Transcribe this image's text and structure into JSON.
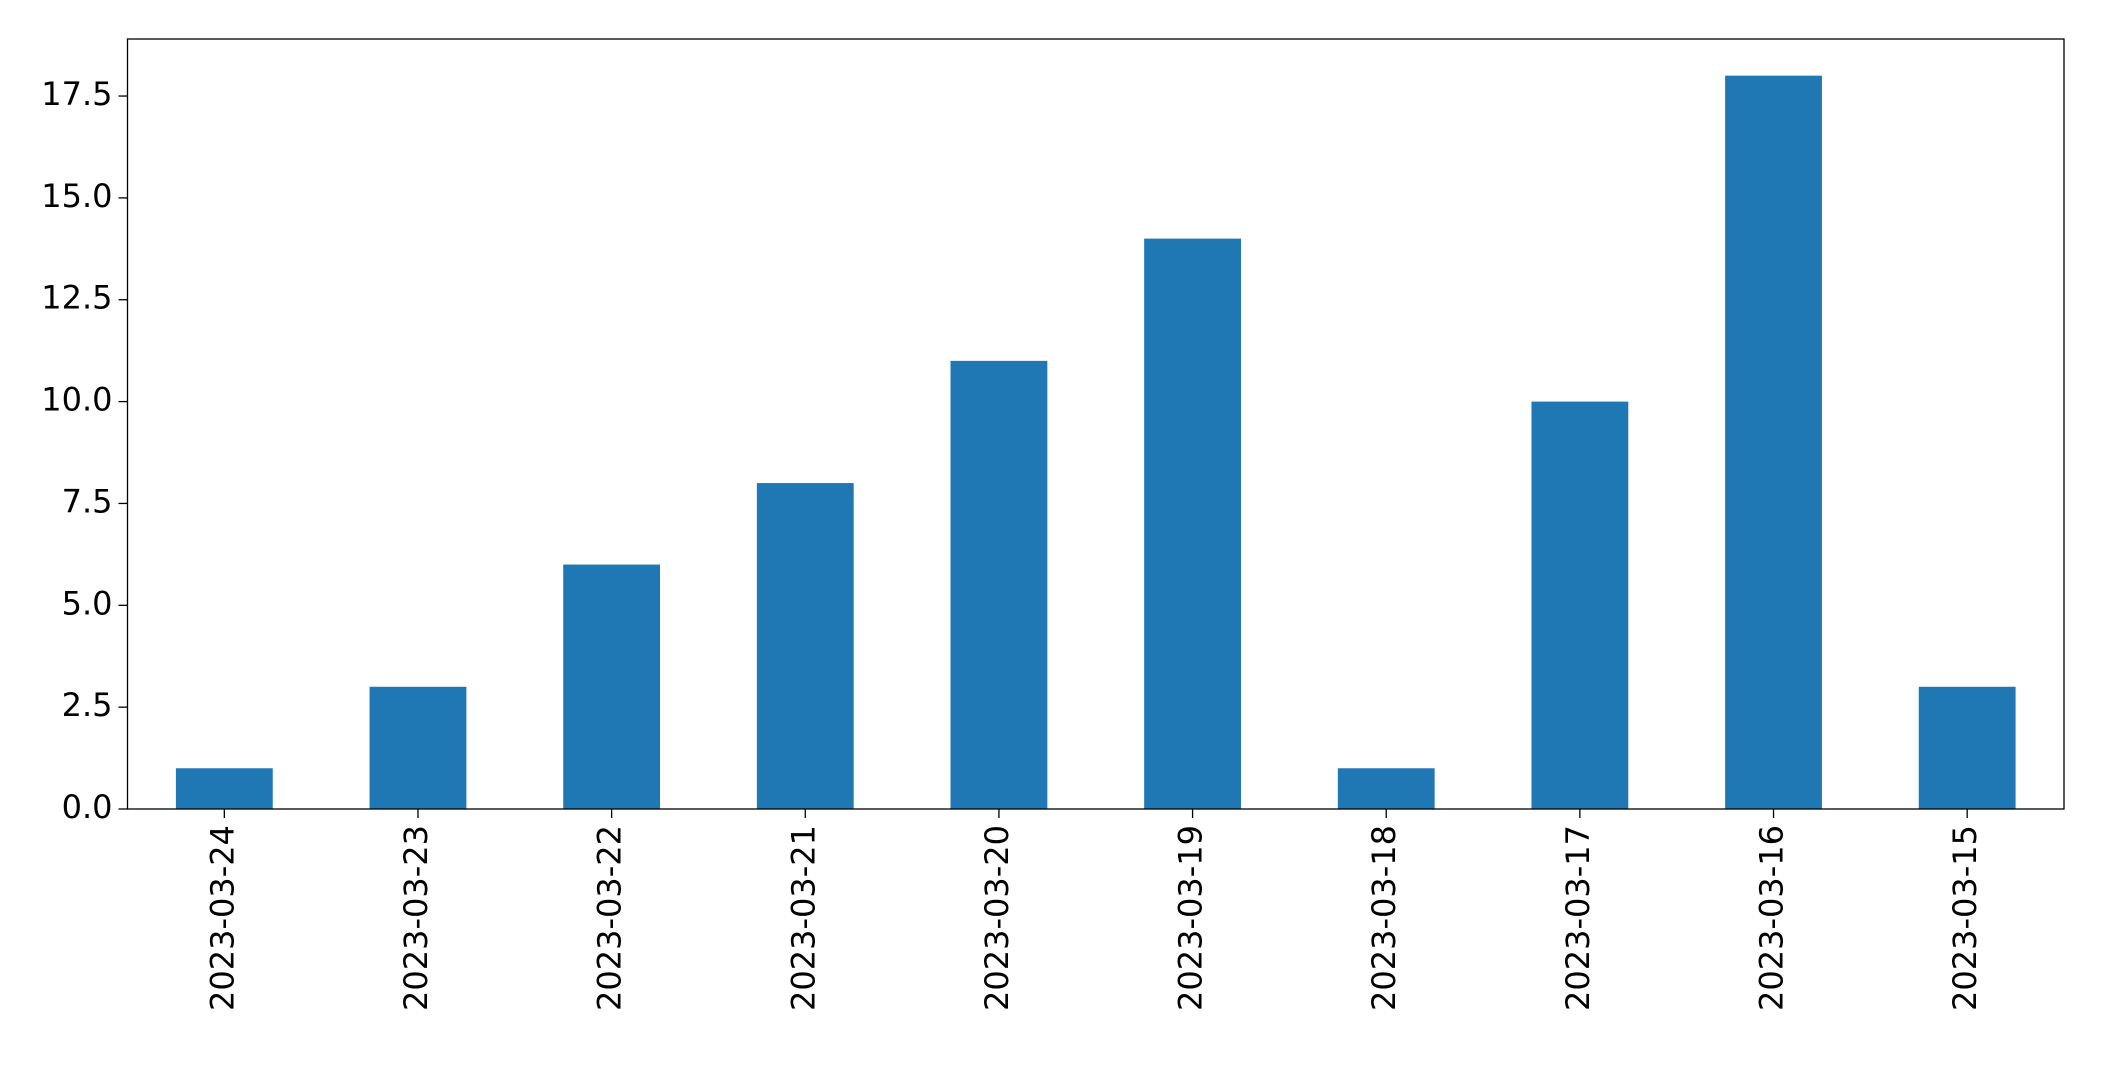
{
  "chart_data": {
    "type": "bar",
    "categories": [
      "2023-03-24",
      "2023-03-23",
      "2023-03-22",
      "2023-03-21",
      "2023-03-20",
      "2023-03-19",
      "2023-03-18",
      "2023-03-17",
      "2023-03-16",
      "2023-03-15"
    ],
    "values": [
      1,
      3,
      6,
      8,
      11,
      14,
      1,
      10,
      18,
      3
    ],
    "color": "#1f77b4",
    "ylim": [
      0,
      18.9
    ],
    "yticks": [
      {
        "value": 0,
        "label": "0.0"
      },
      2.5,
      {
        "value": 5,
        "label": "5.0"
      },
      7.5,
      {
        "value": 10,
        "label": "10.0"
      },
      12.5,
      {
        "value": 15,
        "label": "15.0"
      },
      17.5
    ],
    "grid": false
  }
}
